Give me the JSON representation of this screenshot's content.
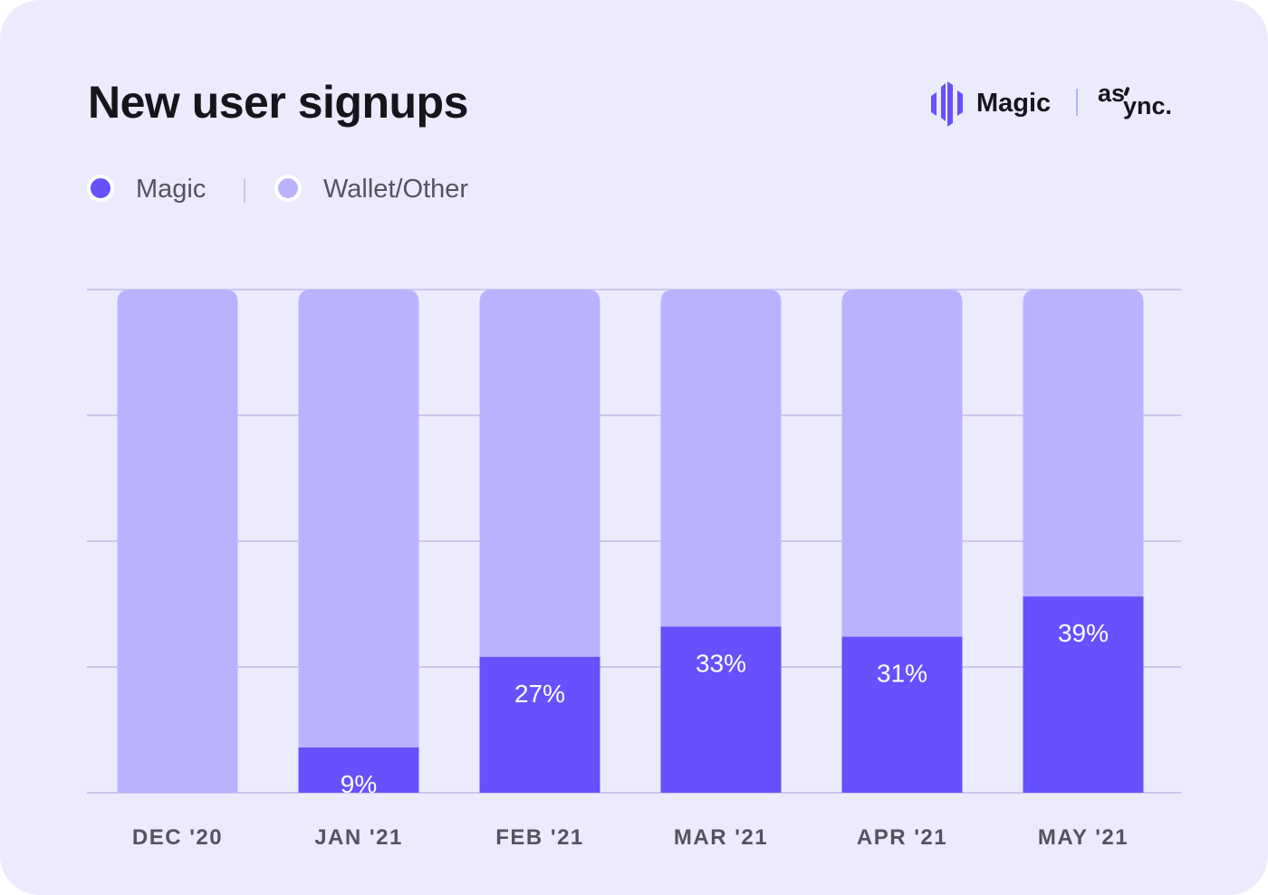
{
  "header": {
    "title": "New user signups",
    "brand_name": "Magic",
    "partner_name": "async."
  },
  "legend": {
    "items": [
      {
        "label": "Magic",
        "color": "#6651FD"
      },
      {
        "label": "Wallet/Other",
        "color": "#BBB2FF"
      }
    ]
  },
  "chart_data": {
    "type": "bar",
    "stacked": true,
    "categories": [
      "DEC '20",
      "JAN '21",
      "FEB '21",
      "MAR '21",
      "APR '21",
      "MAY '21"
    ],
    "series": [
      {
        "name": "Magic",
        "values": [
          0,
          9,
          27,
          33,
          31,
          39
        ],
        "color": "#6651FD"
      },
      {
        "name": "Wallet/Other",
        "values": [
          100,
          91,
          73,
          67,
          69,
          61
        ],
        "color": "#BBB2FF"
      }
    ],
    "data_labels": [
      "",
      "9%",
      "27%",
      "33%",
      "31%",
      "39%"
    ],
    "ylim": [
      0,
      100
    ],
    "grid": true,
    "legend_position": "top-left"
  }
}
